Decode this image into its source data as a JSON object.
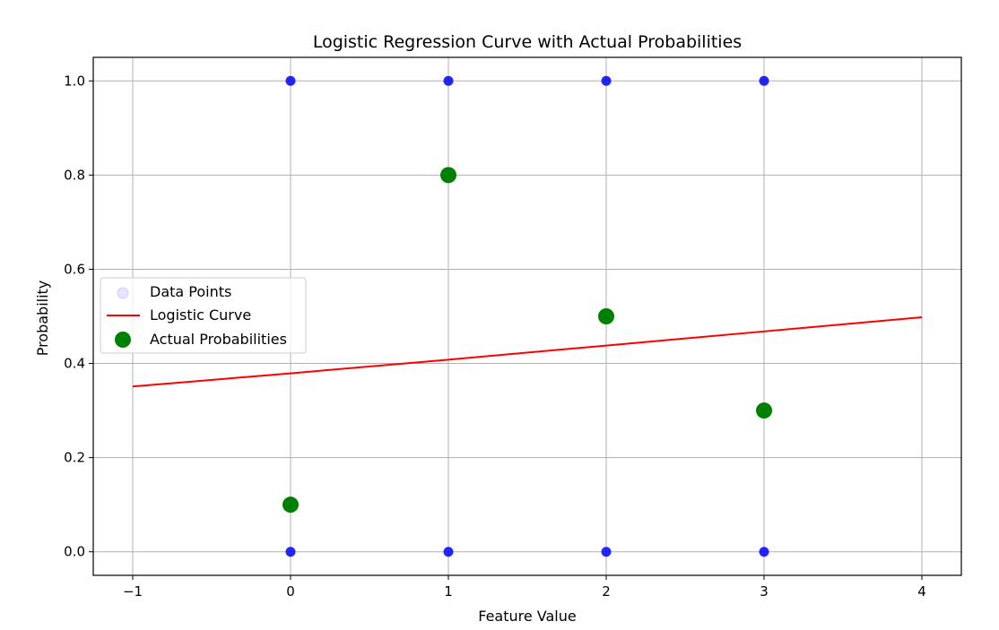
{
  "chart_data": {
    "type": "scatter",
    "title": "Logistic Regression Curve with Actual Probabilities",
    "xlabel": "Feature Value",
    "ylabel": "Probability",
    "xlim": [
      -1.25,
      4.25
    ],
    "ylim": [
      -0.05,
      1.05
    ],
    "x_ticks": [
      -1,
      0,
      1,
      2,
      3,
      4
    ],
    "x_tick_labels": [
      "−1",
      "0",
      "1",
      "2",
      "3",
      "4"
    ],
    "y_ticks": [
      0.0,
      0.2,
      0.4,
      0.6,
      0.8,
      1.0
    ],
    "y_tick_labels": [
      "0.0",
      "0.2",
      "0.4",
      "0.6",
      "0.8",
      "1.0"
    ],
    "grid": true,
    "legend_position": "center-left",
    "series": [
      {
        "name": "Data Points",
        "kind": "scatter",
        "color": "#0000ff",
        "points": [
          [
            0,
            0
          ],
          [
            0,
            1
          ],
          [
            1,
            0
          ],
          [
            1,
            1
          ],
          [
            2,
            0
          ],
          [
            2,
            1
          ],
          [
            3,
            0
          ],
          [
            3,
            1
          ]
        ]
      },
      {
        "name": "Logistic Curve",
        "kind": "line",
        "color": "#ff0000",
        "points": [
          [
            -1,
            0.351
          ],
          [
            0,
            0.379
          ],
          [
            1,
            0.408
          ],
          [
            2,
            0.438
          ],
          [
            3,
            0.468
          ],
          [
            4,
            0.498
          ]
        ]
      },
      {
        "name": "Actual Probabilities",
        "kind": "scatter",
        "color": "#008000",
        "points": [
          [
            0,
            0.1
          ],
          [
            1,
            0.8
          ],
          [
            2,
            0.5
          ],
          [
            3,
            0.3
          ]
        ]
      }
    ]
  }
}
